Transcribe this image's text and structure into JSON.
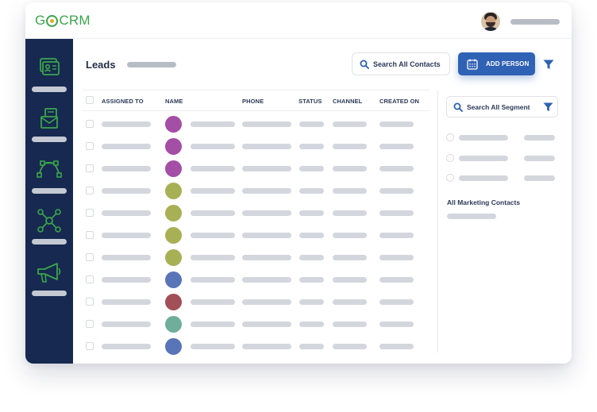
{
  "app": {
    "logo_prefix": "G",
    "logo_suffix": "CRM"
  },
  "page": {
    "title": "Leads"
  },
  "toolbar": {
    "search_label": "Search All Contacts",
    "add_label": "ADD PERSON"
  },
  "table": {
    "columns": [
      "ASSIGNED TO",
      "NAME",
      "PHONE",
      "STATUS",
      "CHANNEL",
      "CREATED ON"
    ],
    "rows": [
      {
        "avatar_color": "#a44ea5"
      },
      {
        "avatar_color": "#a44ea5"
      },
      {
        "avatar_color": "#a44ea5"
      },
      {
        "avatar_color": "#a8b056"
      },
      {
        "avatar_color": "#a8b056"
      },
      {
        "avatar_color": "#a8b056"
      },
      {
        "avatar_color": "#a8b056"
      },
      {
        "avatar_color": "#5a74b8"
      },
      {
        "avatar_color": "#a24f57"
      },
      {
        "avatar_color": "#6fae9a"
      },
      {
        "avatar_color": "#5a74b8"
      }
    ]
  },
  "segments": {
    "search_label": "Search All Segment",
    "section_label": "All Marketing Contacts"
  },
  "sidebar": {
    "icons": [
      "contact-card-icon",
      "mail-icon",
      "pipeline-icon",
      "network-icon",
      "megaphone-icon"
    ]
  },
  "colors": {
    "primary": "#2f61b4",
    "sidebar": "#172950",
    "brand_green": "#3aa54b"
  }
}
